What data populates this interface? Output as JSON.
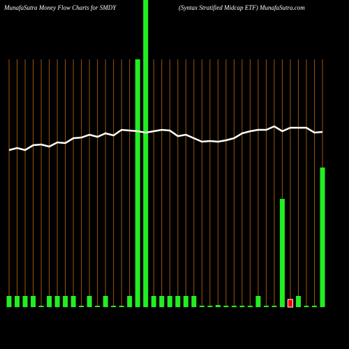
{
  "chart_data": {
    "type": "bar",
    "title": "MunafaSutra  Money Flow  Charts for SMDY",
    "subtitle": "(Syntax Stratified Midcap ETF) MunafaSutra.com",
    "categories": [
      null,
      null,
      null,
      null,
      null,
      null,
      null,
      null,
      null,
      null,
      null,
      null,
      null,
      null,
      null,
      null,
      null,
      null,
      null,
      null,
      null,
      null,
      null,
      null,
      null,
      null,
      null,
      null,
      null,
      null,
      null,
      null,
      null,
      null,
      null,
      null,
      null,
      null,
      null,
      null
    ],
    "ylim": [
      0,
      440
    ],
    "series": [
      {
        "type": "bar",
        "values": [
          16,
          16,
          16,
          16,
          2,
          16,
          16,
          16,
          16,
          2,
          16,
          2,
          16,
          2,
          2,
          16,
          355,
          440,
          16,
          16,
          16,
          16,
          16,
          16,
          2,
          2,
          3,
          2,
          2,
          2,
          2,
          16,
          2,
          2,
          155,
          11,
          16,
          2,
          2,
          200
        ],
        "colors": [
          "#22ee22",
          "#22ee22",
          "#22ee22",
          "#22ee22",
          "#22ee22",
          "#22ee22",
          "#22ee22",
          "#22ee22",
          "#22ee22",
          "#22ee22",
          "#22ee22",
          "#22ee22",
          "#22ee22",
          "#22ee22",
          "#22ee22",
          "#22ee22",
          "#22ee22",
          "#22ee22",
          "#22ee22",
          "#22ee22",
          "#22ee22",
          "#22ee22",
          "#22ee22",
          "#22ee22",
          "#22ee22",
          "#22ee22",
          "#22ee22",
          "#22ee22",
          "#22ee22",
          "#22ee22",
          "#22ee22",
          "#22ee22",
          "#22ee22",
          "#22ee22",
          "#22ee22",
          "#ff0000",
          "#22ee22",
          "#22ee22",
          "#22ee22",
          "#22ee22"
        ]
      },
      {
        "type": "line",
        "color": "#ffffff",
        "values": [
          225,
          228,
          225,
          232,
          233,
          230,
          236,
          235,
          242,
          243,
          247,
          244,
          249,
          246,
          254,
          253,
          252,
          250,
          252,
          254,
          253,
          245,
          247,
          242,
          237,
          238,
          237,
          239,
          242,
          249,
          252,
          254,
          254,
          259,
          252,
          257,
          257,
          257,
          250,
          251
        ]
      }
    ]
  }
}
